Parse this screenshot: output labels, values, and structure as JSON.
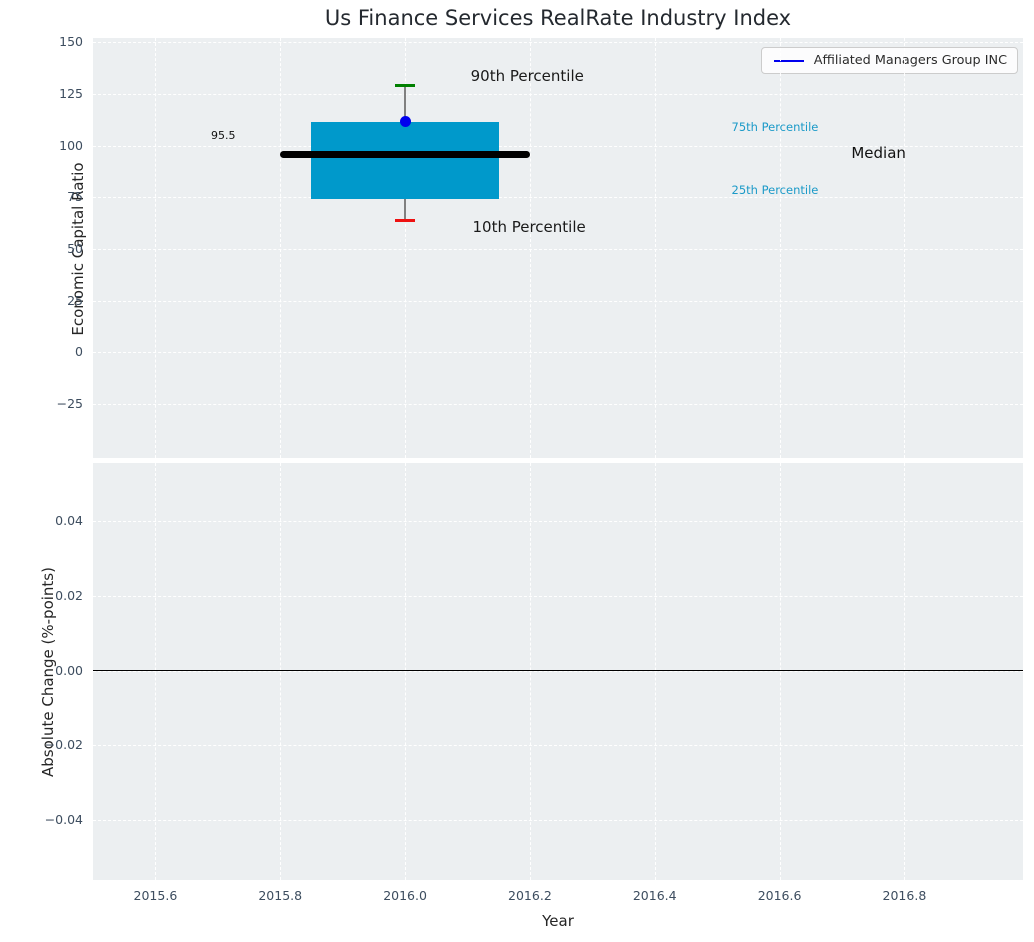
{
  "figure": {
    "title": "Us Finance Services RealRate Industry Index",
    "plot_bg_color": "#eceff1",
    "grid_color": "#ffffff",
    "tick_label_color": "#3d4d5f",
    "text_color": "#262626"
  },
  "legend": {
    "label": "Affiliated Managers Group INC",
    "line_color": "#0000ee",
    "position": "upper right"
  },
  "chart_data": [
    {
      "type": "boxplot",
      "panel": "top",
      "ylabel": "Economic Capital Ratio",
      "xlim": [
        2015.5,
        2016.99
      ],
      "ylim": [
        -51,
        152
      ],
      "yticks": [
        150,
        125,
        100,
        75,
        50,
        25,
        0,
        -25
      ],
      "ytick_labels": [
        "150",
        "125",
        "100",
        "75",
        "50",
        "25",
        "0",
        "−25"
      ],
      "xticks": [
        2015.6,
        2015.8,
        2016.0,
        2016.2,
        2016.4,
        2016.6,
        2016.8
      ],
      "grid": true,
      "series": {
        "name": "Affiliated Managers Group INC",
        "x": 2016.0,
        "p10": 64,
        "p25": 74,
        "median": 95.5,
        "p75": 111.5,
        "p90": 129,
        "company_value": 111.5,
        "box_halfwidth": 0.15,
        "median_halfspan": 0.2
      },
      "colors": {
        "box": "#0099cb",
        "whisker": "#808080",
        "cap_top": "#008000",
        "cap_bottom": "#ee1111",
        "dot": "#0000ee",
        "median_line": "#000000"
      },
      "annotations": [
        {
          "text": "90th Percentile",
          "x": 2016.105,
          "y": 133.0,
          "color": "#1a1a1a",
          "size": 15
        },
        {
          "text": "10th Percentile",
          "x": 2016.108,
          "y": 60.0,
          "color": "#1a1a1a",
          "size": 15
        },
        {
          "text": "75th Percentile",
          "x": 2016.523,
          "y": 108.5,
          "color": "#1b9ac8",
          "size": 11.5
        },
        {
          "text": "25th Percentile",
          "x": 2016.523,
          "y": 78.0,
          "color": "#1b9ac8",
          "size": 11.5
        },
        {
          "text": "Median",
          "x": 2016.715,
          "y": 96.0,
          "color": "#111111",
          "size": 15
        },
        {
          "text": "95.5",
          "x": 2015.689,
          "y": 104.5,
          "color": "#111111",
          "size": 11
        }
      ]
    },
    {
      "type": "line",
      "panel": "bottom",
      "ylabel": "Absolute Change (%-points)",
      "xlabel": "Year",
      "xlim": [
        2015.5,
        2016.99
      ],
      "ylim": [
        -0.056,
        0.0555
      ],
      "yticks": [
        0.04,
        0.02,
        0.0,
        -0.02,
        -0.04
      ],
      "ytick_labels": [
        "0.04",
        "0.02",
        "0.00",
        "−0.02",
        "−0.04"
      ],
      "xticks": [
        2015.6,
        2015.8,
        2016.0,
        2016.2,
        2016.4,
        2016.6,
        2016.8
      ],
      "xtick_labels": [
        "2015.6",
        "2015.8",
        "2016.0",
        "2016.2",
        "2016.4",
        "2016.6",
        "2016.8"
      ],
      "grid": true,
      "zero_line": 0.0,
      "zero_line_color": "#000000"
    }
  ]
}
